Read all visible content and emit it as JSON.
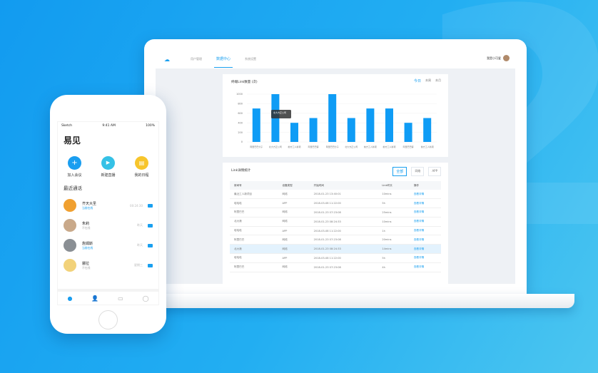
{
  "app": {
    "nav": [
      "用户管理",
      "数据中心",
      "系统设置"
    ],
    "active_nav": 1,
    "user": "我是小可爱"
  },
  "chart_data": {
    "type": "bar",
    "title": "终端Link数量 (次)",
    "periods": [
      "今日",
      "本周",
      "本月"
    ],
    "categories": [
      "阿里巴巴分子",
      "北大方正公司",
      "前方工人新项",
      "阿里巴巴客",
      "阿里巴巴分子",
      "北大方正公司",
      "前方工人新项",
      "前方工人新项",
      "阿里巴巴客",
      "前方工人新项"
    ],
    "values": [
      700,
      1000,
      400,
      500,
      1000,
      500,
      700,
      700,
      400,
      500
    ],
    "ylim": [
      0,
      1000
    ],
    "yticks": [
      0,
      200,
      400,
      600,
      800,
      1000
    ],
    "color": "#0f9cf5",
    "tooltip": "北大方正公司"
  },
  "table": {
    "title": "Link详情统计",
    "filters": [
      "全部",
      "网络",
      "APP"
    ],
    "headers": [
      "房间号",
      "设备类型",
      "开始时间",
      "Link时长",
      "操作"
    ],
    "rows": [
      [
        "最近工人新项目",
        "网络",
        "2018-01-23 13:40:01",
        "10mins",
        "查看详情"
      ],
      [
        "哈哈哈",
        "APP",
        "2018-03-08 11:22:00",
        "5h",
        "查看详情"
      ],
      [
        "阿里巴巴",
        "网络",
        "2018-01-23 07:23:08",
        "25mins",
        "查看详情"
      ],
      [
        "北大港",
        "网络",
        "2018-01-23 08:24:33",
        "10mins",
        "查看详情"
      ],
      [
        "哈哈哈",
        "APP",
        "2018-03-08 11:22:00",
        "1h",
        "查看详情"
      ],
      [
        "阿里巴巴",
        "网络",
        "2018-01-23 07:23:08",
        "20mins",
        "查看详情"
      ],
      [
        "北大港",
        "网络",
        "2018-01-23 08:24:33",
        "14mins",
        "查看详情"
      ],
      [
        "哈哈哈",
        "APP",
        "2018-03-08 11:22:00",
        "5h",
        "查看详情"
      ],
      [
        "阿里巴巴",
        "网络",
        "2018-01-23 07:23:08",
        "4h",
        "查看详情"
      ]
    ]
  },
  "phone": {
    "carrier": "Sketch",
    "time": "9:41 AM",
    "battery": "100%",
    "title": "易见",
    "actions": [
      "加入会议",
      "新建直播",
      "我的日程"
    ],
    "section": "最近通话",
    "contacts": [
      {
        "name": "齐天大圣",
        "status": "当前在线",
        "time": "00:24:30"
      },
      {
        "name": "朱莉",
        "status": "不在线",
        "time": "昨天"
      },
      {
        "name": "詹姆斯",
        "status": "当前在线",
        "time": "昨天"
      },
      {
        "name": "娜拉",
        "status": "不在线",
        "time": "星期三"
      }
    ]
  }
}
